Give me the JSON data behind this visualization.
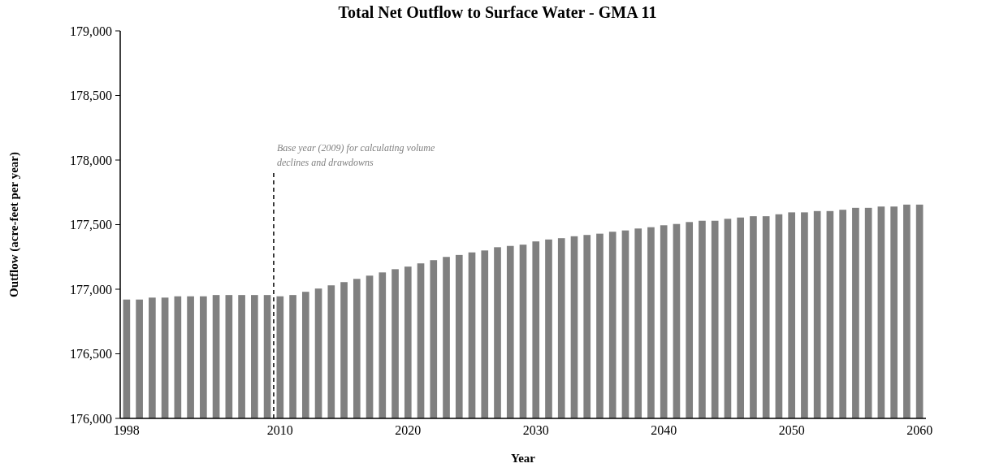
{
  "chart_data": {
    "type": "bar",
    "title": "Total Net Outflow to Surface Water - GMA 11",
    "xlabel": "Year",
    "ylabel": "Outflow (acre-feet per year)",
    "x": [
      1998,
      1999,
      2000,
      2001,
      2002,
      2003,
      2004,
      2005,
      2006,
      2007,
      2008,
      2009,
      2010,
      2011,
      2012,
      2013,
      2014,
      2015,
      2016,
      2017,
      2018,
      2019,
      2020,
      2021,
      2022,
      2023,
      2024,
      2025,
      2026,
      2027,
      2028,
      2029,
      2030,
      2031,
      2032,
      2033,
      2034,
      2035,
      2036,
      2037,
      2038,
      2039,
      2040,
      2041,
      2042,
      2043,
      2044,
      2045,
      2046,
      2047,
      2048,
      2049,
      2050,
      2051,
      2052,
      2053,
      2054,
      2055,
      2056,
      2057,
      2058,
      2059,
      2060
    ],
    "values": [
      176920,
      176920,
      176935,
      176935,
      176945,
      176945,
      176945,
      176955,
      176955,
      176955,
      176955,
      176955,
      176945,
      176955,
      176980,
      177005,
      177030,
      177055,
      177080,
      177105,
      177130,
      177155,
      177175,
      177200,
      177225,
      177250,
      177265,
      177285,
      177300,
      177325,
      177335,
      177345,
      177370,
      177385,
      177395,
      177410,
      177420,
      177430,
      177445,
      177455,
      177470,
      177480,
      177495,
      177505,
      177520,
      177530,
      177530,
      177545,
      177555,
      177565,
      177565,
      177580,
      177595,
      177595,
      177605,
      177605,
      177615,
      177630,
      177630,
      177640,
      177640,
      177655,
      177655
    ],
    "color": "#808080",
    "xlim": [
      1997.5,
      2060.5
    ],
    "xticks": [
      1998,
      2010,
      2020,
      2030,
      2040,
      2050,
      2060
    ],
    "ylim": [
      176000,
      179000
    ],
    "yticks": [
      {
        "value": 176000,
        "label": "176,000"
      },
      {
        "value": 176500,
        "label": "176,500"
      },
      {
        "value": 177000,
        "label": "177,000"
      },
      {
        "value": 177500,
        "label": "177,500"
      },
      {
        "value": 178000,
        "label": "178,000"
      },
      {
        "value": 178500,
        "label": "178,500"
      },
      {
        "value": 179000,
        "label": "179,000"
      }
    ],
    "ref_lines": [
      {
        "axis": "x",
        "value": 2009.5,
        "label": "Base year (2009) for calculating volume declines and drawdowns",
        "color": "#000000",
        "line_style": "dashed"
      }
    ],
    "grid": false
  }
}
